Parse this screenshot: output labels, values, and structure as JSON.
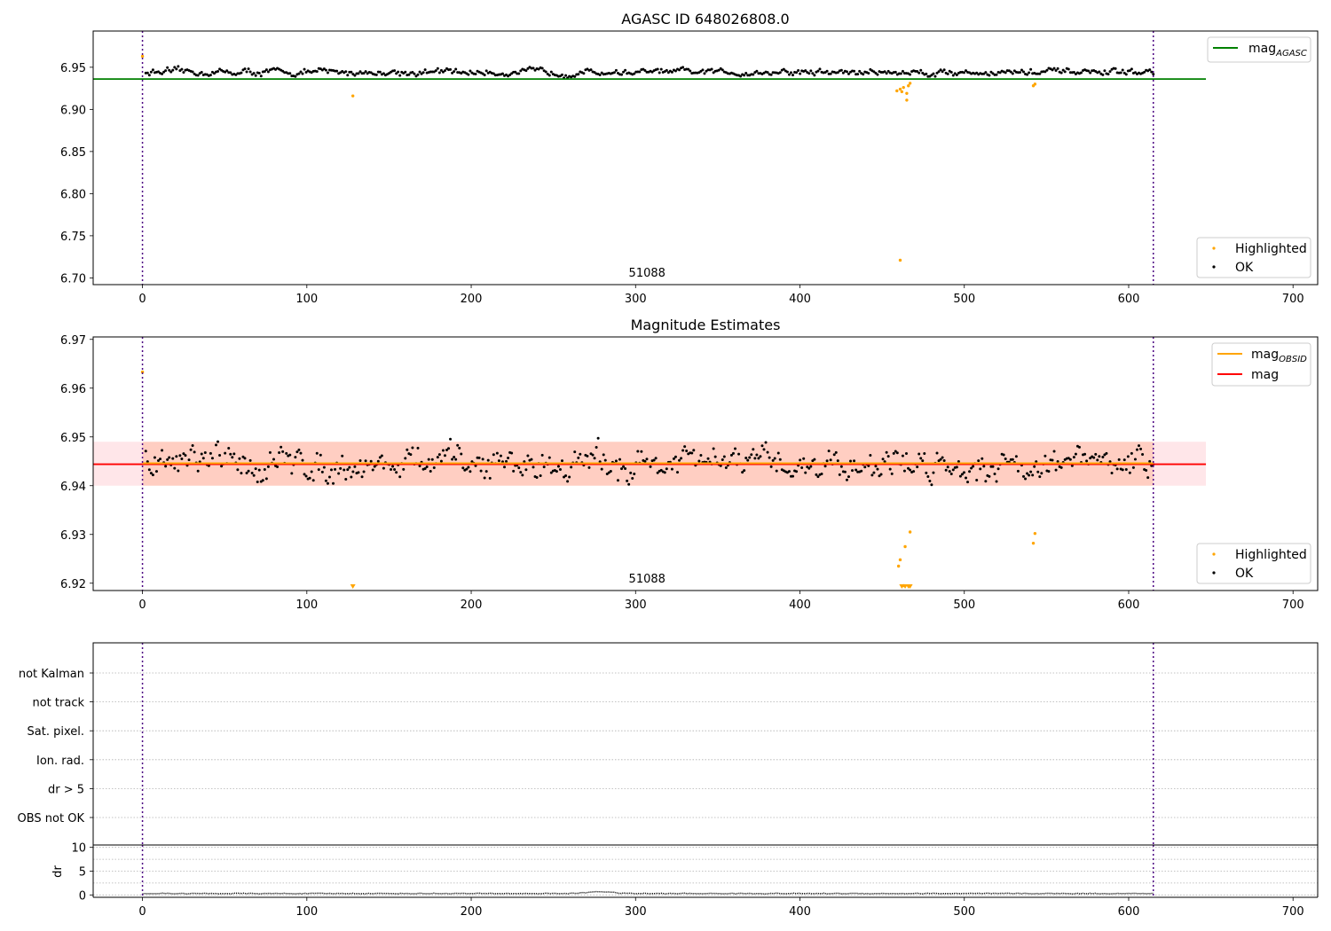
{
  "chart_data": [
    {
      "type": "scatter",
      "title": "AGASC ID 648026808.0",
      "xlim": [
        -30,
        715
      ],
      "ylim": [
        6.692,
        6.993
      ],
      "xticks": [
        "0",
        "100",
        "200",
        "300",
        "400",
        "500",
        "600",
        "700"
      ],
      "xtick_values": [
        0,
        100,
        200,
        300,
        400,
        500,
        600,
        700
      ],
      "yticks": [
        "6.70",
        "6.75",
        "6.80",
        "6.85",
        "6.90",
        "6.95"
      ],
      "ytick_values": [
        6.7,
        6.75,
        6.8,
        6.85,
        6.9,
        6.95
      ],
      "annotation": "51088",
      "annotation_x": 307,
      "vlines": [
        0,
        615
      ],
      "hline": {
        "name": "mag_AGASC",
        "y": 6.936,
        "x": [
          -30,
          647
        ],
        "color": "#008000"
      },
      "ok_points": {
        "name": "OK",
        "color": "#000000",
        "x_range": [
          2,
          615
        ],
        "y_center": 6.944,
        "noise": 0.0055
      },
      "highlighted": {
        "name": "Highlighted",
        "color": "#FFA500",
        "points": [
          [
            0,
            6.963
          ],
          [
            128,
            6.916
          ],
          [
            459,
            6.922
          ],
          [
            461,
            6.924
          ],
          [
            462,
            6.921
          ],
          [
            463,
            6.926
          ],
          [
            465,
            6.911
          ],
          [
            465,
            6.919
          ],
          [
            466,
            6.928
          ],
          [
            467,
            6.931
          ],
          [
            461,
            6.721
          ],
          [
            542,
            6.928
          ],
          [
            543,
            6.93
          ]
        ]
      },
      "legend_upper": {
        "label": "mag",
        "subscript": "AGASC",
        "position": "top-right"
      },
      "legend_lower": {
        "items": [
          "Highlighted",
          "OK"
        ],
        "position": "bottom-right"
      }
    },
    {
      "type": "scatter",
      "title": "Magnitude Estimates",
      "xlim": [
        -30,
        715
      ],
      "ylim": [
        6.9185,
        6.9705
      ],
      "xticks": [
        "0",
        "100",
        "200",
        "300",
        "400",
        "500",
        "600",
        "700"
      ],
      "xtick_values": [
        0,
        100,
        200,
        300,
        400,
        500,
        600,
        700
      ],
      "yticks": [
        "6.92",
        "6.93",
        "6.94",
        "6.95",
        "6.96",
        "6.97"
      ],
      "ytick_values": [
        6.92,
        6.93,
        6.94,
        6.95,
        6.96,
        6.97
      ],
      "annotation": "51088",
      "annotation_x": 307,
      "vlines": [
        0,
        615
      ],
      "band_mag": {
        "y": [
          6.94,
          6.949
        ],
        "x": [
          -30,
          647
        ],
        "color": "#FFB6C1"
      },
      "band_obsid": {
        "y": [
          6.94,
          6.949
        ],
        "x": [
          0,
          615
        ],
        "color": "#FFA07A"
      },
      "line_mag": {
        "name": "mag",
        "y": 6.9444,
        "x": [
          -30,
          647
        ],
        "color": "#FF0000"
      },
      "line_obsid": {
        "name": "mag_OBSID",
        "y": 6.9446,
        "x": [
          0,
          615
        ],
        "color": "#FFA500"
      },
      "ok_points": {
        "name": "OK",
        "color": "#000000",
        "x_range": [
          2,
          615
        ],
        "y_center": 6.9445,
        "noise": 0.0045
      },
      "highlighted": {
        "name": "Highlighted",
        "color": "#FFA500",
        "points": [
          [
            0,
            6.9633
          ],
          [
            460,
            6.9235
          ],
          [
            461,
            6.9248
          ],
          [
            463,
            6.9195
          ],
          [
            464,
            6.9275
          ],
          [
            467,
            6.9305
          ],
          [
            542,
            6.9282
          ],
          [
            543,
            6.9302
          ]
        ],
        "clipped_markers": [
          128,
          462,
          464,
          466,
          467
        ]
      },
      "legend_upper": {
        "items": [
          {
            "label": "mag",
            "subscript": "OBSID",
            "color": "#FFA500"
          },
          {
            "label": "mag",
            "color": "#FF0000"
          }
        ],
        "position": "top-right"
      },
      "legend_lower": {
        "items": [
          "Highlighted",
          "OK"
        ],
        "position": "bottom-right"
      }
    },
    {
      "type": "scatter",
      "title": "",
      "categories": [
        "not Kalman",
        "not track",
        "Sat. pixel.",
        "Ion. rad.",
        "dr > 5",
        "OBS not OK"
      ],
      "xlim": [
        -30,
        715
      ],
      "vlines": [
        0,
        615
      ],
      "values": []
    },
    {
      "type": "line",
      "title": "",
      "ylabel": "dr",
      "xlim": [
        -30,
        715
      ],
      "ylim": [
        -0.5,
        10.5
      ],
      "yticks": [
        "0",
        "5",
        "10"
      ],
      "ytick_values": [
        0,
        5,
        10
      ],
      "xticks": [
        "0",
        "100",
        "200",
        "300",
        "400",
        "500",
        "600",
        "700"
      ],
      "xtick_values": [
        0,
        100,
        200,
        300,
        400,
        500,
        600,
        700
      ],
      "vlines": [
        0,
        615
      ],
      "series": [
        {
          "x_range": [
            0,
            615
          ],
          "y_base": 0.3,
          "bump_x": 278,
          "bump_y": 0.7
        }
      ]
    }
  ]
}
